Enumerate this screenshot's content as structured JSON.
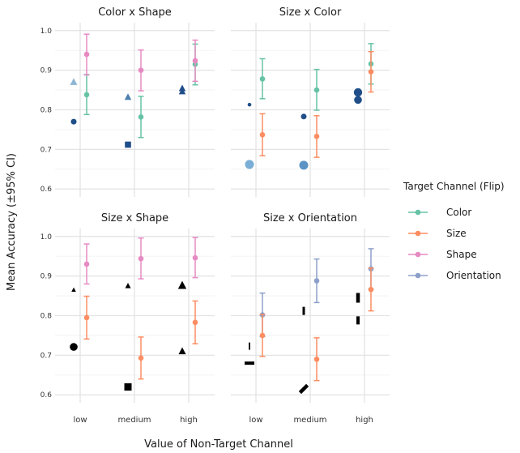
{
  "chart_data": {
    "type": "scatter",
    "xlabel": "Value of Non-Target Channel",
    "ylabel": "Mean Accuracy (±95% CI)",
    "categories": [
      "low",
      "medium",
      "high"
    ],
    "yticks": [
      "0.6",
      "0.7",
      "0.8",
      "0.9",
      "1.0"
    ],
    "ylim": [
      0.58,
      1.02
    ],
    "legend": {
      "title": "Target Channel (Flip)",
      "entries": [
        {
          "name": "Color",
          "color": "#66c2a5"
        },
        {
          "name": "Size",
          "color": "#fc8d62"
        },
        {
          "name": "Shape",
          "color": "#e78ac3"
        },
        {
          "name": "Orientation",
          "color": "#8da0cb"
        }
      ]
    },
    "panels": [
      {
        "title": "Color x Shape",
        "series": [
          {
            "name": "Color",
            "color": "#66c2a5",
            "values": [
              0.838,
              0.782,
              0.915
            ],
            "ci_low": [
              0.788,
              0.73,
              0.863
            ],
            "ci_high": [
              0.889,
              0.834,
              0.966
            ]
          },
          {
            "name": "Shape",
            "color": "#e78ac3",
            "values": [
              0.94,
              0.9,
              0.924
            ],
            "ci_low": [
              0.888,
              0.848,
              0.872
            ],
            "ci_high": [
              0.991,
              0.951,
              0.976
            ]
          }
        ],
        "markers": [
          {
            "x": "low",
            "y": 0.77,
            "shape": "circle",
            "fill": "#1f4e89",
            "size": 3.5
          },
          {
            "x": "low",
            "y": 0.87,
            "shape": "triangle",
            "fill": "#8fb5d3",
            "size": 4.5
          },
          {
            "x": "medium",
            "y": 0.712,
            "shape": "square",
            "fill": "#1f4e89",
            "size": 3.8
          },
          {
            "x": "medium",
            "y": 0.832,
            "shape": "triangle",
            "fill": "#4a7fb0",
            "size": 4.2
          },
          {
            "x": "high",
            "y": 0.846,
            "shape": "triangle",
            "fill": "#1f4e89",
            "size": 4.2
          },
          {
            "x": "high",
            "y": 0.854,
            "shape": "triangle",
            "fill": "#1f4e89",
            "size": 4.2
          }
        ]
      },
      {
        "title": "Size x Color",
        "series": [
          {
            "name": "Color",
            "color": "#66c2a5",
            "values": [
              0.878,
              0.85,
              0.916
            ],
            "ci_low": [
              0.828,
              0.799,
              0.865
            ],
            "ci_high": [
              0.929,
              0.902,
              0.967
            ]
          },
          {
            "name": "Size",
            "color": "#fc8d62",
            "values": [
              0.737,
              0.733,
              0.896
            ],
            "ci_low": [
              0.684,
              0.68,
              0.845
            ],
            "ci_high": [
              0.79,
              0.785,
              0.947
            ]
          }
        ],
        "markers": [
          {
            "x": "low",
            "y": 0.813,
            "shape": "circle",
            "fill": "#1f4e89",
            "size": 2.3
          },
          {
            "x": "low",
            "y": 0.662,
            "shape": "circle",
            "fill": "#7aaed6",
            "size": 5.5
          },
          {
            "x": "medium",
            "y": 0.783,
            "shape": "circle",
            "fill": "#1f4e89",
            "size": 3.5
          },
          {
            "x": "medium",
            "y": 0.66,
            "shape": "circle",
            "fill": "#5b93c5",
            "size": 5.5
          },
          {
            "x": "high",
            "y": 0.825,
            "shape": "circle",
            "fill": "#1f4e89",
            "size": 4.8
          },
          {
            "x": "high",
            "y": 0.844,
            "shape": "circle",
            "fill": "#1f4e89",
            "size": 5.2
          }
        ]
      },
      {
        "title": "Size x Shape",
        "series": [
          {
            "name": "Size",
            "color": "#fc8d62",
            "values": [
              0.795,
              0.693,
              0.783
            ],
            "ci_low": [
              0.741,
              0.64,
              0.729
            ],
            "ci_high": [
              0.849,
              0.746,
              0.837
            ]
          },
          {
            "name": "Shape",
            "color": "#e78ac3",
            "values": [
              0.93,
              0.944,
              0.946
            ],
            "ci_low": [
              0.88,
              0.893,
              0.896
            ],
            "ci_high": [
              0.981,
              0.996,
              0.997
            ]
          }
        ],
        "markers": [
          {
            "x": "low",
            "y": 0.721,
            "shape": "circle",
            "fill": "#000000",
            "size": 4.8
          },
          {
            "x": "low",
            "y": 0.865,
            "shape": "triangle",
            "fill": "#000000",
            "size": 2.8
          },
          {
            "x": "medium",
            "y": 0.62,
            "shape": "square",
            "fill": "#000000",
            "size": 4.5
          },
          {
            "x": "medium",
            "y": 0.875,
            "shape": "triangle",
            "fill": "#000000",
            "size": 3.5
          },
          {
            "x": "high",
            "y": 0.71,
            "shape": "triangle",
            "fill": "#000000",
            "size": 4.5
          },
          {
            "x": "high",
            "y": 0.876,
            "shape": "triangle",
            "fill": "#000000",
            "size": 5.2
          }
        ]
      },
      {
        "title": "Size x Orientation",
        "series": [
          {
            "name": "Orientation",
            "color": "#8da0cb",
            "values": [
              0.802,
              0.888,
              0.918
            ],
            "ci_low": [
              0.747,
              0.833,
              0.867
            ],
            "ci_high": [
              0.857,
              0.943,
              0.969
            ]
          },
          {
            "name": "Size",
            "color": "#fc8d62",
            "values": [
              0.75,
              0.69,
              0.866
            ],
            "ci_low": [
              0.697,
              0.636,
              0.812
            ],
            "ci_high": [
              0.803,
              0.744,
              0.92
            ]
          }
        ],
        "markers": [
          {
            "x": "low",
            "y": 0.68,
            "shape": "bar",
            "angle": 90,
            "fill": "#000000",
            "len": 12,
            "w": 4
          },
          {
            "x": "low",
            "y": 0.723,
            "shape": "bar",
            "angle": 0,
            "fill": "#000000",
            "len": 9,
            "w": 1.8
          },
          {
            "x": "medium",
            "y": 0.615,
            "shape": "bar",
            "angle": 45,
            "fill": "#000000",
            "len": 13,
            "w": 4.5
          },
          {
            "x": "medium",
            "y": 0.812,
            "shape": "bar",
            "angle": 0,
            "fill": "#000000",
            "len": 10,
            "w": 3
          },
          {
            "x": "high",
            "y": 0.788,
            "shape": "bar",
            "angle": 0,
            "fill": "#000000",
            "len": 10,
            "w": 4
          },
          {
            "x": "high",
            "y": 0.845,
            "shape": "bar",
            "angle": 0,
            "fill": "#000000",
            "len": 12,
            "w": 4.5
          }
        ]
      }
    ]
  }
}
